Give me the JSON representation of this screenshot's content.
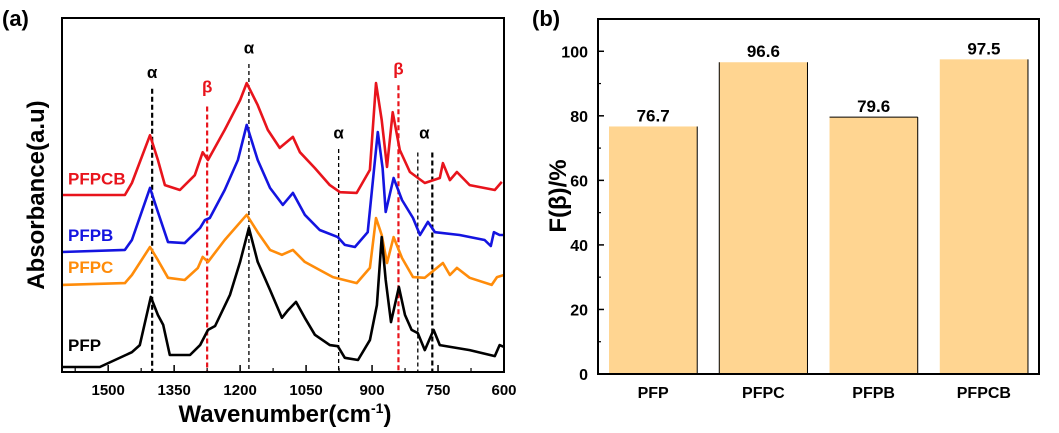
{
  "figure": {
    "panel_a_label": "(a)",
    "panel_b_label": "(b)"
  },
  "chart_data": [
    {
      "type": "line",
      "panel": "(a)",
      "title": "",
      "xlabel": "Wavenumber(cm⁻¹)",
      "xlabel_base": "Wavenumber(cm",
      "xlabel_sup": "-1",
      "xlabel_close": ")",
      "ylabel": "Absorbance(a.u)",
      "xlim": [
        1605,
        600
      ],
      "x_reversed": true,
      "ylim": [
        0,
        1
      ],
      "x_ticks": [
        1500,
        1350,
        1200,
        1050,
        900,
        750,
        600
      ],
      "x_minor_ticks": [
        1575,
        1425,
        1275,
        1125,
        975,
        825,
        675
      ],
      "y_ticks_shown": false,
      "grid": false,
      "series": [
        {
          "name": "PFPCB",
          "color": "#e8141c",
          "points": [
            [
              1605,
              0.5
            ],
            [
              1462,
              0.5
            ],
            [
              1446,
              0.534
            ],
            [
              1405,
              0.669
            ],
            [
              1387,
              0.599
            ],
            [
              1371,
              0.528
            ],
            [
              1337,
              0.514
            ],
            [
              1303,
              0.556
            ],
            [
              1285,
              0.621
            ],
            [
              1273,
              0.599
            ],
            [
              1235,
              0.684
            ],
            [
              1200,
              0.768
            ],
            [
              1185,
              0.816
            ],
            [
              1160,
              0.754
            ],
            [
              1137,
              0.684
            ],
            [
              1110,
              0.633
            ],
            [
              1080,
              0.664
            ],
            [
              1064,
              0.621
            ],
            [
              1030,
              0.576
            ],
            [
              996,
              0.528
            ],
            [
              973,
              0.508
            ],
            [
              935,
              0.506
            ],
            [
              905,
              0.571
            ],
            [
              891,
              0.816
            ],
            [
              878,
              0.712
            ],
            [
              866,
              0.579
            ],
            [
              853,
              0.734
            ],
            [
              837,
              0.627
            ],
            [
              814,
              0.565
            ],
            [
              780,
              0.534
            ],
            [
              746,
              0.548
            ],
            [
              739,
              0.59
            ],
            [
              723,
              0.542
            ],
            [
              707,
              0.565
            ],
            [
              678,
              0.528
            ],
            [
              621,
              0.514
            ],
            [
              605,
              0.537
            ]
          ]
        },
        {
          "name": "PFPB",
          "color": "#1414e0",
          "points": [
            [
              1605,
              0.339
            ],
            [
              1462,
              0.345
            ],
            [
              1446,
              0.373
            ],
            [
              1405,
              0.52
            ],
            [
              1387,
              0.452
            ],
            [
              1364,
              0.367
            ],
            [
              1326,
              0.364
            ],
            [
              1291,
              0.407
            ],
            [
              1280,
              0.429
            ],
            [
              1269,
              0.435
            ],
            [
              1235,
              0.514
            ],
            [
              1205,
              0.599
            ],
            [
              1185,
              0.698
            ],
            [
              1160,
              0.599
            ],
            [
              1132,
              0.52
            ],
            [
              1103,
              0.472
            ],
            [
              1080,
              0.506
            ],
            [
              1053,
              0.444
            ],
            [
              1019,
              0.401
            ],
            [
              978,
              0.381
            ],
            [
              962,
              0.359
            ],
            [
              939,
              0.353
            ],
            [
              910,
              0.395
            ],
            [
              887,
              0.678
            ],
            [
              876,
              0.576
            ],
            [
              869,
              0.452
            ],
            [
              851,
              0.548
            ],
            [
              832,
              0.486
            ],
            [
              807,
              0.435
            ],
            [
              791,
              0.387
            ],
            [
              773,
              0.424
            ],
            [
              757,
              0.395
            ],
            [
              701,
              0.387
            ],
            [
              644,
              0.373
            ],
            [
              630,
              0.356
            ],
            [
              623,
              0.395
            ],
            [
              610,
              0.387
            ],
            [
              600,
              0.387
            ]
          ]
        },
        {
          "name": "PFPC",
          "color": "#ff8c0a",
          "points": [
            [
              1605,
              0.246
            ],
            [
              1462,
              0.251
            ],
            [
              1446,
              0.274
            ],
            [
              1405,
              0.353
            ],
            [
              1387,
              0.316
            ],
            [
              1364,
              0.266
            ],
            [
              1326,
              0.26
            ],
            [
              1296,
              0.294
            ],
            [
              1285,
              0.325
            ],
            [
              1273,
              0.311
            ],
            [
              1235,
              0.373
            ],
            [
              1185,
              0.444
            ],
            [
              1160,
              0.395
            ],
            [
              1132,
              0.345
            ],
            [
              1105,
              0.331
            ],
            [
              1080,
              0.345
            ],
            [
              1053,
              0.311
            ],
            [
              1019,
              0.288
            ],
            [
              989,
              0.268
            ],
            [
              935,
              0.251
            ],
            [
              905,
              0.294
            ],
            [
              891,
              0.435
            ],
            [
              878,
              0.387
            ],
            [
              866,
              0.308
            ],
            [
              851,
              0.381
            ],
            [
              832,
              0.322
            ],
            [
              807,
              0.268
            ],
            [
              780,
              0.266
            ],
            [
              739,
              0.308
            ],
            [
              723,
              0.274
            ],
            [
              707,
              0.294
            ],
            [
              678,
              0.266
            ],
            [
              628,
              0.246
            ],
            [
              616,
              0.268
            ],
            [
              600,
              0.274
            ]
          ]
        },
        {
          "name": "PFP",
          "color": "#000000",
          "points": [
            [
              1605,
              0.014
            ],
            [
              1519,
              0.014
            ],
            [
              1446,
              0.056
            ],
            [
              1428,
              0.076
            ],
            [
              1403,
              0.212
            ],
            [
              1387,
              0.161
            ],
            [
              1375,
              0.133
            ],
            [
              1360,
              0.048
            ],
            [
              1314,
              0.048
            ],
            [
              1291,
              0.076
            ],
            [
              1273,
              0.119
            ],
            [
              1257,
              0.13
            ],
            [
              1223,
              0.218
            ],
            [
              1200,
              0.311
            ],
            [
              1180,
              0.407
            ],
            [
              1160,
              0.311
            ],
            [
              1132,
              0.232
            ],
            [
              1105,
              0.153
            ],
            [
              1091,
              0.175
            ],
            [
              1073,
              0.198
            ],
            [
              1053,
              0.153
            ],
            [
              1030,
              0.105
            ],
            [
              996,
              0.076
            ],
            [
              978,
              0.073
            ],
            [
              962,
              0.04
            ],
            [
              932,
              0.034
            ],
            [
              905,
              0.09
            ],
            [
              889,
              0.189
            ],
            [
              878,
              0.381
            ],
            [
              869,
              0.26
            ],
            [
              857,
              0.141
            ],
            [
              839,
              0.24
            ],
            [
              825,
              0.161
            ],
            [
              810,
              0.119
            ],
            [
              796,
              0.11
            ],
            [
              780,
              0.062
            ],
            [
              760,
              0.119
            ],
            [
              746,
              0.076
            ],
            [
              678,
              0.062
            ],
            [
              621,
              0.045
            ],
            [
              610,
              0.076
            ],
            [
              600,
              0.071
            ]
          ]
        }
      ],
      "series_labels": [
        {
          "name": "PFPCB",
          "text": "PFPCB",
          "color": "#e8141c",
          "y": 0.53
        },
        {
          "name": "PFPB",
          "text": "PFPB",
          "color": "#1414e0",
          "y": 0.37
        },
        {
          "name": "PFPC",
          "text": "PFPC",
          "color": "#ff8c0a",
          "y": 0.28
        },
        {
          "name": "PFP",
          "text": "PFP",
          "color": "#000000",
          "y": 0.06
        }
      ],
      "annotations": [
        {
          "symbol": "α",
          "x": 1400,
          "color": "#000000",
          "label_y": 0.83,
          "line_top": 0.8
        },
        {
          "symbol": "β",
          "x": 1275,
          "color": "#e8141c",
          "label_y": 0.79,
          "line_top": 0.75
        },
        {
          "symbol": "α",
          "x": 1180,
          "color": "#000000",
          "label_y": 0.9,
          "line_top": 0.87
        },
        {
          "symbol": "α",
          "x": 976,
          "color": "#000000",
          "label_y": 0.66,
          "line_top": 0.63
        },
        {
          "symbol": "β",
          "x": 840,
          "color": "#e8141c",
          "label_y": 0.84,
          "line_top": 0.81
        },
        {
          "symbol": "α",
          "x": 796,
          "color": "#000000",
          "label_y": null,
          "line_top": 0.62
        },
        {
          "symbol": "α",
          "x": 763,
          "color": "#000000",
          "label_y": 0.66,
          "line_top": 0.62
        }
      ]
    },
    {
      "type": "bar",
      "panel": "(b)",
      "title": "",
      "xlabel": "",
      "ylabel": "F(β)/%",
      "categories": [
        "PFP",
        "PFPC",
        "PFPB",
        "PFPCB"
      ],
      "values": [
        76.7,
        96.6,
        79.6,
        97.5
      ],
      "data_labels": [
        "76.7",
        "96.6",
        "79.6",
        "97.5"
      ],
      "ylim": [
        0,
        110
      ],
      "y_ticks": [
        0,
        20,
        40,
        60,
        80,
        100
      ],
      "y_minor_ticks": [
        10,
        30,
        50,
        70,
        90
      ],
      "bar_color": "#ffd591",
      "grid": false,
      "legend": "none"
    }
  ]
}
